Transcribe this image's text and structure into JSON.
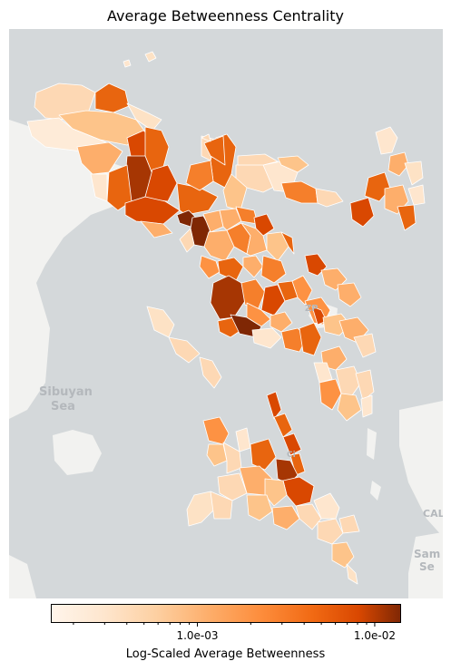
{
  "title": "Average Betweenness Centrality",
  "place_labels": {
    "sibuyan": "Sibuyan",
    "sea": "Sea",
    "samar_fragment": "Sam",
    "samar_fragment2": "Se",
    "cal_fragment": "CAL",
    "city_fragment": "Ci",
    "zp_fragment": "ZP"
  },
  "colorbar": {
    "label": "Log-Scaled Average Betweenness",
    "scale": "log",
    "colormap": "Oranges",
    "ticks": [
      {
        "value": 0.001,
        "label": "1.0e-03"
      },
      {
        "value": 0.01,
        "label": "1.0e-02"
      }
    ],
    "range": [
      0.00015,
      0.014
    ]
  },
  "colors": {
    "water": "#d4d8da",
    "land": "#f2f2f0",
    "border": "#ffffff"
  }
}
